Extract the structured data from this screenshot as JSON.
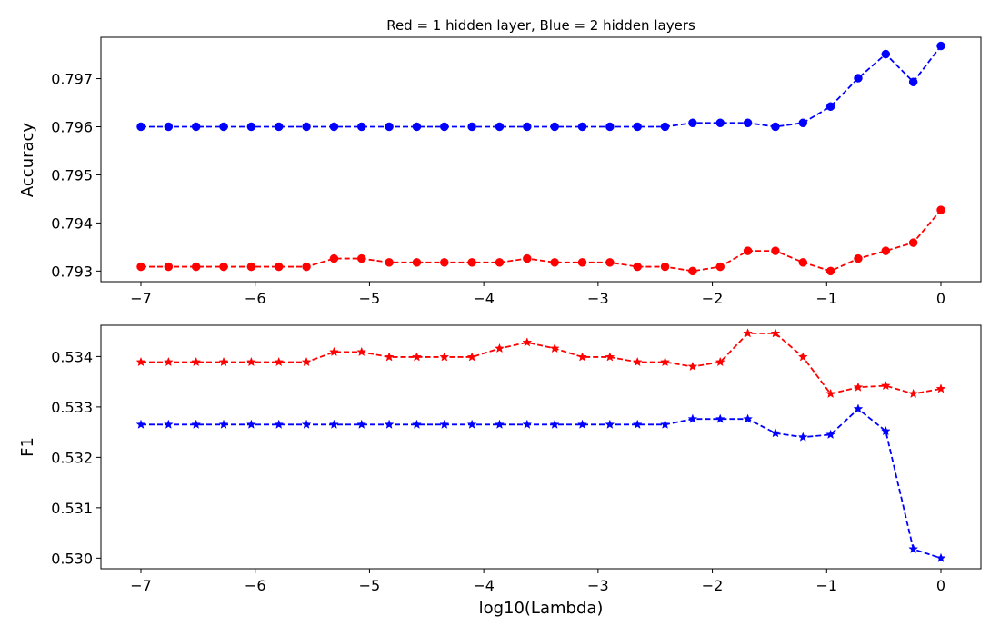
{
  "figure_title": "Red = 1 hidden layer, Blue = 2 hidden layers",
  "chart_data": [
    {
      "type": "line",
      "title": "Red = 1 hidden layer, Blue = 2 hidden layers",
      "xlabel": "",
      "ylabel": "Accuracy",
      "xlim": [
        -7.35,
        0.35
      ],
      "ylim": [
        0.79278,
        0.79786
      ],
      "xticks": [
        -7,
        -6,
        -5,
        -4,
        -3,
        -2,
        -1,
        0
      ],
      "xtick_labels": [
        "−7",
        "−6",
        "−5",
        "−4",
        "−3",
        "−2",
        "−1",
        "0"
      ],
      "yticks": [
        0.793,
        0.794,
        0.795,
        0.796,
        0.797
      ],
      "ytick_labels": [
        "0.793",
        "0.794",
        "0.795",
        "0.796",
        "0.797"
      ],
      "grid": false,
      "x": [
        -7.0,
        -6.7586,
        -6.5172,
        -6.2759,
        -6.0345,
        -5.7931,
        -5.5517,
        -5.3103,
        -5.069,
        -4.8276,
        -4.5862,
        -4.3448,
        -4.1034,
        -3.8621,
        -3.6207,
        -3.3793,
        -3.1379,
        -2.8966,
        -2.6552,
        -2.4138,
        -2.1724,
        -1.931,
        -1.6897,
        -1.4483,
        -1.2069,
        -0.9655,
        -0.7241,
        -0.4828,
        -0.2414,
        0.0
      ],
      "series": [
        {
          "name": "",
          "color": "#0000ff",
          "marker": "circle",
          "linestyle": "dashed",
          "values": [
            0.796,
            0.796,
            0.796,
            0.796,
            0.796,
            0.796,
            0.796,
            0.796,
            0.796,
            0.796,
            0.796,
            0.796,
            0.796,
            0.796,
            0.796,
            0.796,
            0.796,
            0.796,
            0.796,
            0.796,
            0.79608,
            0.79608,
            0.79608,
            0.796,
            0.79608,
            0.79642,
            0.79701,
            0.79751,
            0.79693,
            0.79768
          ]
        },
        {
          "name": "",
          "color": "#ff0000",
          "marker": "circle",
          "linestyle": "dashed",
          "values": [
            0.79309,
            0.79309,
            0.79309,
            0.79309,
            0.79309,
            0.79309,
            0.79309,
            0.79326,
            0.79326,
            0.79318,
            0.79318,
            0.79318,
            0.79318,
            0.79318,
            0.79326,
            0.79318,
            0.79318,
            0.79318,
            0.79309,
            0.79309,
            0.793,
            0.79309,
            0.79342,
            0.79342,
            0.79318,
            0.793,
            0.79326,
            0.79342,
            0.79359,
            0.79427
          ]
        }
      ]
    },
    {
      "type": "line",
      "title": "",
      "xlabel": "log10(Lambda)",
      "ylabel": "F1",
      "xlim": [
        -7.35,
        0.35
      ],
      "ylim": [
        0.52979,
        0.53462
      ],
      "xticks": [
        -7,
        -6,
        -5,
        -4,
        -3,
        -2,
        -1,
        0
      ],
      "xtick_labels": [
        "−7",
        "−6",
        "−5",
        "−4",
        "−3",
        "−2",
        "−1",
        "0"
      ],
      "yticks": [
        0.53,
        0.531,
        0.532,
        0.533,
        0.534
      ],
      "ytick_labels": [
        "0.530",
        "0.531",
        "0.532",
        "0.533",
        "0.534"
      ],
      "grid": false,
      "x": [
        -7.0,
        -6.7586,
        -6.5172,
        -6.2759,
        -6.0345,
        -5.7931,
        -5.5517,
        -5.3103,
        -5.069,
        -4.8276,
        -4.5862,
        -4.3448,
        -4.1034,
        -3.8621,
        -3.6207,
        -3.3793,
        -3.1379,
        -2.8966,
        -2.6552,
        -2.4138,
        -2.1724,
        -1.931,
        -1.6897,
        -1.4483,
        -1.2069,
        -0.9655,
        -0.7241,
        -0.4828,
        -0.2414,
        0.0
      ],
      "series": [
        {
          "name": "",
          "color": "#ff0000",
          "marker": "star",
          "linestyle": "dashed",
          "values": [
            0.53389,
            0.53389,
            0.53389,
            0.53389,
            0.53389,
            0.53389,
            0.53389,
            0.53409,
            0.53409,
            0.53399,
            0.53399,
            0.53399,
            0.53399,
            0.53416,
            0.53428,
            0.53416,
            0.53399,
            0.53399,
            0.53389,
            0.53389,
            0.5338,
            0.53389,
            0.53446,
            0.53446,
            0.53399,
            0.53326,
            0.53339,
            0.53342,
            0.53326,
            0.53336
          ]
        },
        {
          "name": "",
          "color": "#0000ff",
          "marker": "star",
          "linestyle": "dashed",
          "values": [
            0.53265,
            0.53265,
            0.53265,
            0.53265,
            0.53265,
            0.53265,
            0.53265,
            0.53265,
            0.53265,
            0.53265,
            0.53265,
            0.53265,
            0.53265,
            0.53265,
            0.53265,
            0.53265,
            0.53265,
            0.53265,
            0.53265,
            0.53265,
            0.53276,
            0.53276,
            0.53276,
            0.53248,
            0.5324,
            0.53245,
            0.53296,
            0.53252,
            0.53018,
            0.53
          ]
        }
      ]
    }
  ]
}
